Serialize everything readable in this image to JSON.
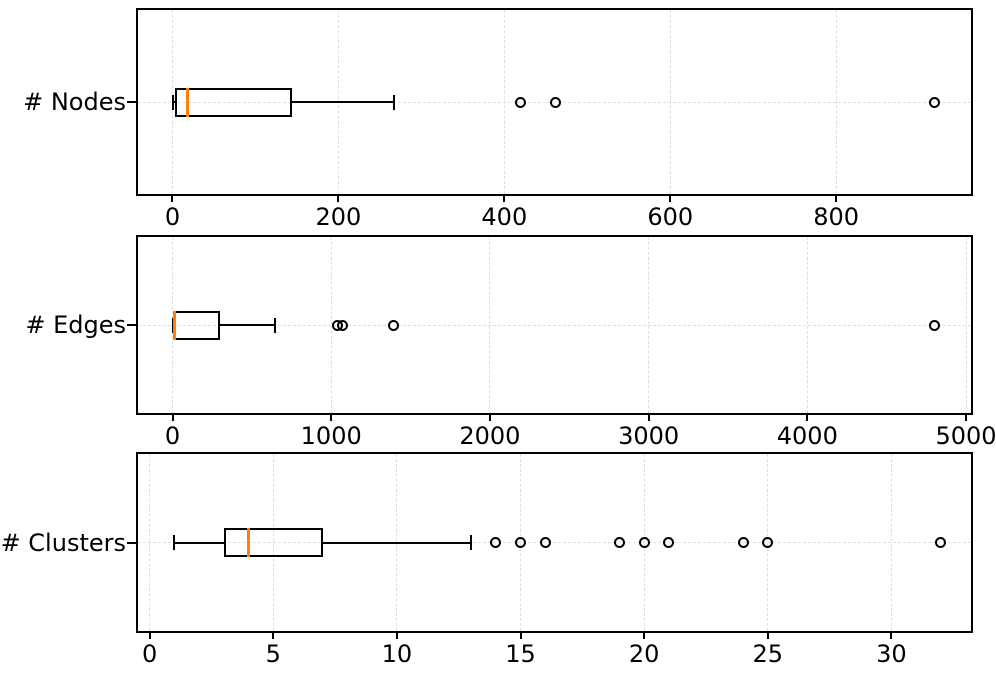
{
  "figure": {
    "background": "#ffffff",
    "title": ""
  },
  "chart_data": {
    "type": "box",
    "orientation": "horizontal",
    "grid": {
      "visible": true,
      "style": "dashed",
      "color": "#dedede"
    },
    "colors": {
      "box_edge": "#000000",
      "whisker": "#000000",
      "median": "#ff7f0e",
      "outlier_edge": "#000000",
      "tick_text": "#000000",
      "background": "#ffffff"
    },
    "panels": [
      {
        "label": "# Nodes",
        "xlim": [
          -44,
          965
        ],
        "xticks": [
          0,
          200,
          400,
          600,
          800
        ],
        "stats": {
          "whisker_low": 1,
          "q1": 3,
          "median": 18,
          "q3": 144,
          "whisker_high": 267
        },
        "outliers": [
          420,
          462,
          918
        ]
      },
      {
        "label": "# Edges",
        "xlim": [
          -230,
          5044
        ],
        "xticks": [
          0,
          1000,
          2000,
          3000,
          4000,
          5000
        ],
        "stats": {
          "whisker_low": 1,
          "q1": 4,
          "median": 14,
          "q3": 300,
          "whisker_high": 645
        },
        "outliers": [
          1040,
          1070,
          1390,
          4800
        ]
      },
      {
        "label": "# Clusters",
        "xlim": [
          -0.55,
          33.3
        ],
        "xticks": [
          0,
          5,
          10,
          15,
          20,
          25,
          30
        ],
        "stats": {
          "whisker_low": 1,
          "q1": 3,
          "median": 4,
          "q3": 7,
          "whisker_high": 13
        },
        "outliers": [
          14,
          15,
          16,
          19,
          20,
          21,
          24,
          25,
          32
        ]
      }
    ]
  }
}
